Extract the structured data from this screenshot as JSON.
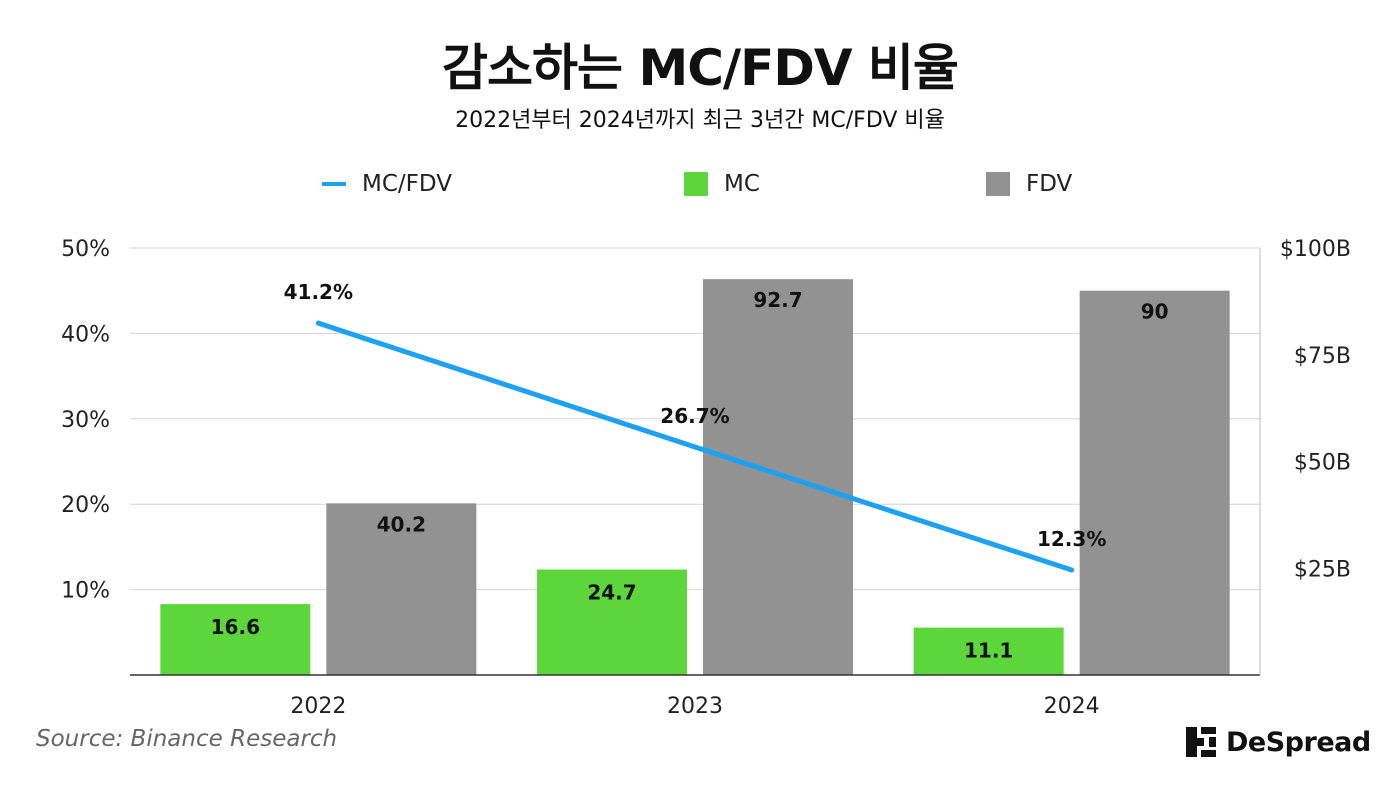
{
  "chart_data": {
    "type": "bar+line",
    "title": "감소하는 MC/FDV 비율",
    "subtitle": "2022년부터 2024년까지 최근 3년간 MC/FDV 비율",
    "categories": [
      "2022",
      "2023",
      "2024"
    ],
    "series": [
      {
        "name": "MC",
        "type": "bar",
        "axis": "right",
        "color": "#5cd63a",
        "values": [
          16.6,
          24.7,
          11.1
        ],
        "labels": [
          "16.6",
          "24.7",
          "11.1"
        ]
      },
      {
        "name": "FDV",
        "type": "bar",
        "axis": "right",
        "color": "#929292",
        "values": [
          40.2,
          92.7,
          90
        ],
        "labels": [
          "40.2",
          "92.7",
          "90"
        ]
      },
      {
        "name": "MC/FDV",
        "type": "line",
        "axis": "left",
        "color": "#1da1f2",
        "values": [
          41.2,
          26.7,
          12.3
        ],
        "labels": [
          "41.2%",
          "26.7%",
          "12.3%"
        ]
      }
    ],
    "left_axis": {
      "ylim": [
        0,
        50
      ],
      "ticks": [
        10,
        20,
        30,
        40,
        50
      ],
      "tick_labels": [
        "10%",
        "20%",
        "30%",
        "40%",
        "50%"
      ]
    },
    "right_axis": {
      "ylim": [
        0,
        100
      ],
      "ticks": [
        25,
        50,
        75,
        100
      ],
      "tick_labels": [
        "$25B",
        "$50B",
        "$75B",
        "$100B"
      ]
    },
    "legend": {
      "position": "top",
      "items": [
        "MC/FDV",
        "MC",
        "FDV"
      ]
    },
    "grid": true
  },
  "source": "Source: Binance Research",
  "brand": "DeSpread"
}
